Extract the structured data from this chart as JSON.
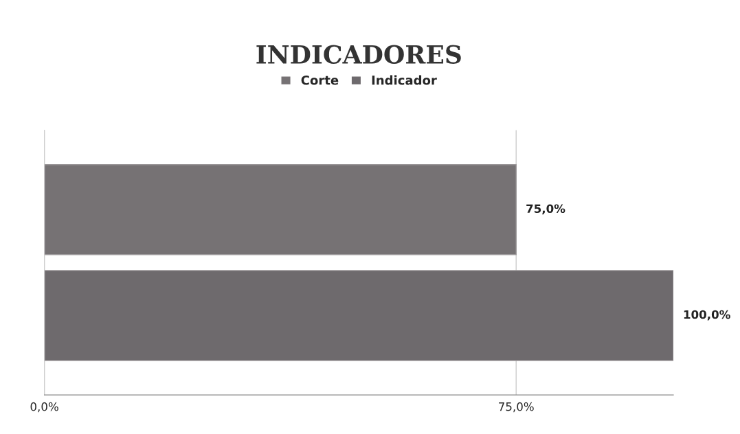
{
  "chart_data": {
    "type": "bar",
    "orientation": "horizontal",
    "title": "INDICADORES",
    "categories": [
      null
    ],
    "series": [
      {
        "name": "Corte",
        "color": "#767274",
        "values": [
          75
        ],
        "value_labels": [
          "75,0%"
        ]
      },
      {
        "name": "Indicador",
        "color": "#6e6a6d",
        "values": [
          100
        ],
        "value_labels": [
          "100,0%"
        ]
      }
    ],
    "xlim": [
      0,
      100
    ],
    "xticks": [
      {
        "value": 0,
        "label": "0,0%"
      },
      {
        "value": 75,
        "label": "75,0%"
      }
    ],
    "grid": "x",
    "legend": "top"
  }
}
